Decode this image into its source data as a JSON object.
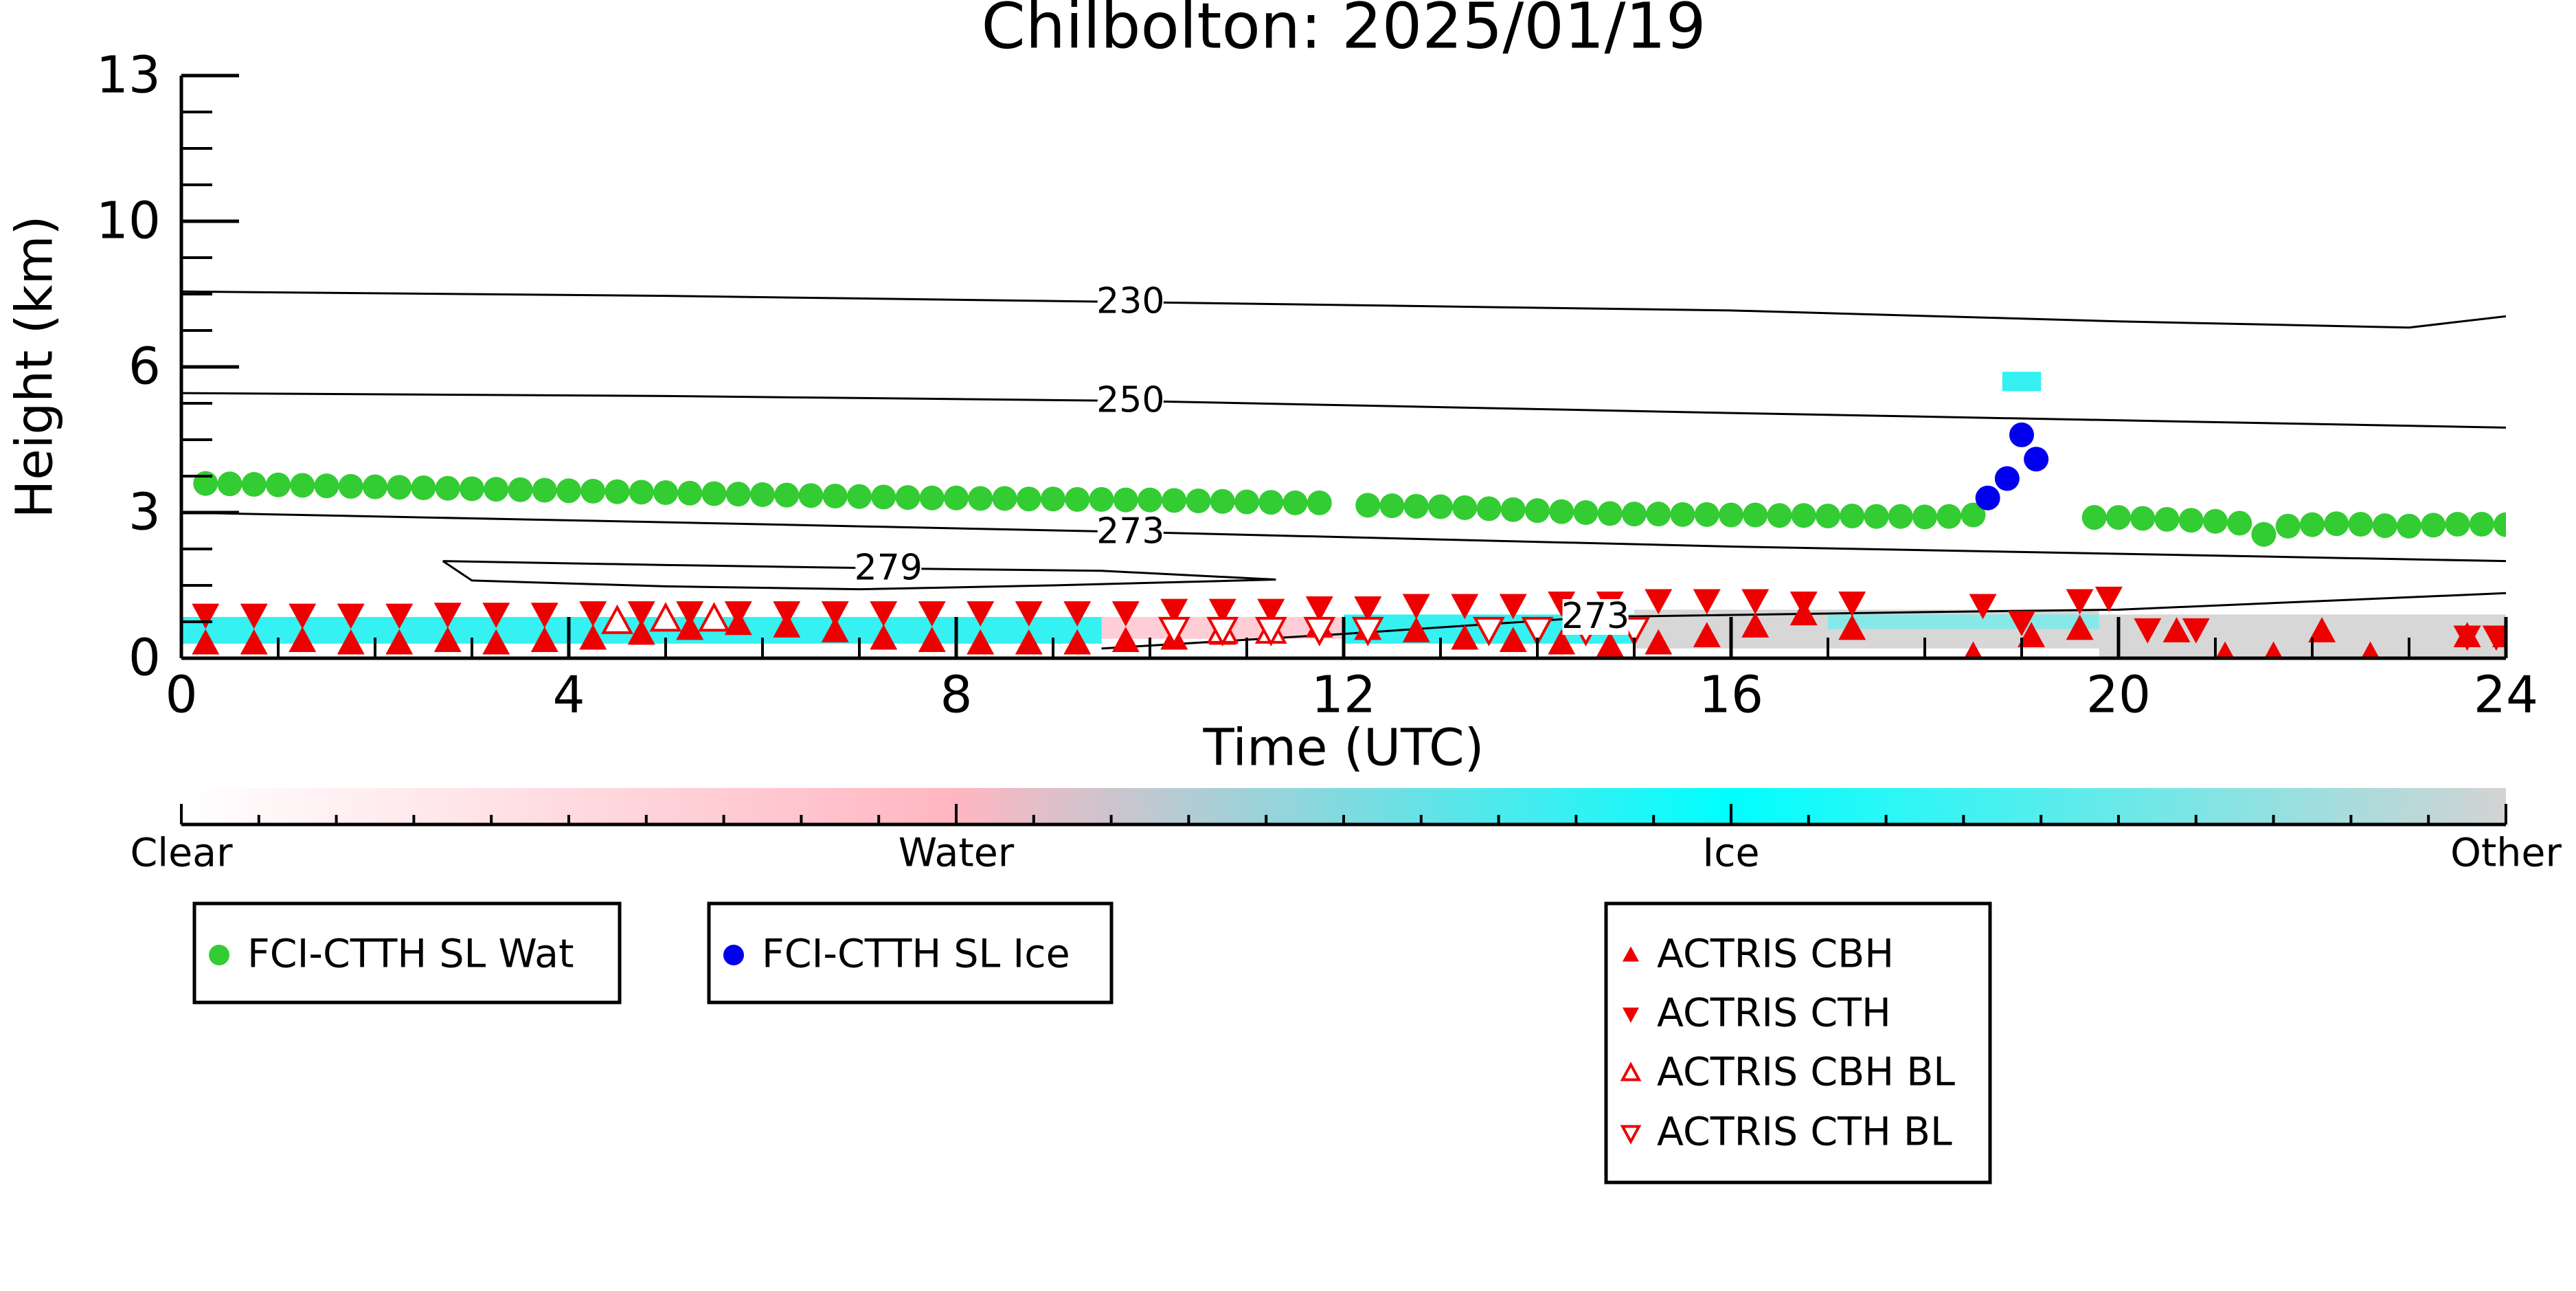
{
  "chart_data": {
    "type": "scatter",
    "title": "Chilbolton: 2025/01/19",
    "xlabel": "Time (UTC)",
    "ylabel": "Height (km)",
    "xlim": [
      0,
      24
    ],
    "xticks": [
      0,
      4,
      8,
      12,
      16,
      20,
      24
    ],
    "xticks_minor": [
      1,
      2,
      3,
      5,
      6,
      7,
      9,
      10,
      11,
      13,
      14,
      15,
      17,
      18,
      19,
      21,
      22,
      23
    ],
    "ylim": [
      0,
      13
    ],
    "yticks": [
      0,
      3,
      6,
      10,
      13
    ],
    "yticks_minor": [
      0.75,
      1.5,
      2.25,
      3.75,
      4.5,
      5.25,
      7,
      8,
      9,
      10.75,
      11.5,
      12.25
    ],
    "series": [
      {
        "name": "FCI-CTTH SL Wat",
        "color": "#33cc33",
        "marker": "circle",
        "x": [
          0.25,
          0.5,
          0.75,
          1,
          1.25,
          1.5,
          1.75,
          2,
          2.25,
          2.5,
          2.75,
          3,
          3.25,
          3.5,
          3.75,
          4,
          4.25,
          4.5,
          4.75,
          5,
          5.25,
          5.5,
          5.75,
          6,
          6.25,
          6.5,
          6.75,
          7,
          7.25,
          7.5,
          7.75,
          8,
          8.25,
          8.5,
          8.75,
          9,
          9.25,
          9.5,
          9.75,
          10,
          10.25,
          10.5,
          10.75,
          11,
          11.25,
          11.5,
          11.75,
          12.25,
          12.5,
          12.75,
          13,
          13.25,
          13.5,
          13.75,
          14,
          14.25,
          14.5,
          14.75,
          15,
          15.25,
          15.5,
          15.75,
          16,
          16.25,
          16.5,
          16.75,
          17,
          17.25,
          17.5,
          17.75,
          18,
          18.25,
          18.5,
          19.75,
          20,
          20.25,
          20.5,
          20.75,
          21,
          21.25,
          21.5,
          21.75,
          22,
          22.25,
          22.5,
          22.75,
          23,
          23.25,
          23.5,
          23.75,
          24
        ],
        "values": [
          3.6,
          3.59,
          3.58,
          3.57,
          3.56,
          3.55,
          3.54,
          3.53,
          3.52,
          3.51,
          3.5,
          3.49,
          3.48,
          3.47,
          3.46,
          3.45,
          3.44,
          3.43,
          3.42,
          3.41,
          3.4,
          3.39,
          3.38,
          3.37,
          3.36,
          3.35,
          3.34,
          3.33,
          3.32,
          3.31,
          3.3,
          3.3,
          3.29,
          3.29,
          3.28,
          3.28,
          3.27,
          3.27,
          3.26,
          3.26,
          3.25,
          3.24,
          3.23,
          3.22,
          3.21,
          3.2,
          3.2,
          3.15,
          3.14,
          3.13,
          3.12,
          3.1,
          3.08,
          3.06,
          3.04,
          3.02,
          3.0,
          2.98,
          2.97,
          2.97,
          2.96,
          2.96,
          2.95,
          2.95,
          2.94,
          2.94,
          2.93,
          2.93,
          2.92,
          2.92,
          2.91,
          2.92,
          2.95,
          2.9,
          2.9,
          2.88,
          2.86,
          2.84,
          2.82,
          2.78,
          2.55,
          2.72,
          2.75,
          2.77,
          2.76,
          2.73,
          2.72,
          2.74,
          2.76,
          2.76,
          2.75
        ]
      },
      {
        "name": "FCI-CTTH SL Ice",
        "color": "#0000ee",
        "marker": "circle",
        "x": [
          18.65,
          18.85,
          19.0,
          19.15
        ],
        "values": [
          3.3,
          3.7,
          4.6,
          4.1
        ]
      },
      {
        "name": "ACTRIS CBH",
        "color": "#ee0000",
        "marker": "triangle-up",
        "x": [
          0.25,
          0.75,
          1.25,
          1.75,
          2.25,
          2.75,
          3.25,
          3.75,
          4.25,
          4.75,
          5.25,
          5.75,
          6.25,
          6.75,
          7.25,
          7.75,
          8.25,
          8.75,
          9.25,
          9.75,
          10.25,
          10.75,
          11.25,
          11.75,
          12.25,
          12.75,
          13.25,
          13.75,
          14.25,
          14.75,
          15.25,
          15.75,
          16.25,
          16.75,
          17.25,
          18.5,
          19.1,
          19.6,
          20.6,
          21.1,
          21.6,
          22.1,
          22.6,
          23.6,
          24
        ],
        "values": [
          0.3,
          0.3,
          0.35,
          0.3,
          0.3,
          0.35,
          0.3,
          0.35,
          0.4,
          0.5,
          0.6,
          0.7,
          0.65,
          0.55,
          0.4,
          0.35,
          0.3,
          0.3,
          0.3,
          0.35,
          0.4,
          0.5,
          0.6,
          0.65,
          0.6,
          0.55,
          0.4,
          0.35,
          0.3,
          0.25,
          0.3,
          0.45,
          0.65,
          0.9,
          0.6,
          0.05,
          0.45,
          0.6,
          0.55,
          0.05,
          0.05,
          0.55,
          0.05,
          0.45,
          0.45
        ]
      },
      {
        "name": "ACTRIS CTH",
        "color": "#ee0000",
        "marker": "triangle-down",
        "x": [
          0.25,
          0.75,
          1.25,
          1.75,
          2.25,
          2.75,
          3.25,
          3.75,
          4.25,
          4.75,
          5.25,
          5.75,
          6.25,
          6.75,
          7.25,
          7.75,
          8.25,
          8.75,
          9.25,
          9.75,
          10.25,
          10.75,
          11.25,
          11.75,
          12.25,
          12.75,
          13.25,
          13.75,
          14.25,
          14.75,
          15.25,
          15.75,
          16.25,
          16.75,
          17.25,
          18.6,
          19.0,
          19.6,
          19.9,
          20.3,
          20.8,
          23.6,
          23.9
        ],
        "values": [
          0.9,
          0.9,
          0.9,
          0.9,
          0.9,
          0.92,
          0.92,
          0.92,
          0.95,
          0.95,
          0.95,
          0.95,
          0.95,
          0.95,
          0.95,
          0.95,
          0.95,
          0.95,
          0.95,
          0.95,
          1.0,
          1.0,
          1.0,
          1.05,
          1.05,
          1.1,
          1.1,
          1.1,
          1.15,
          1.15,
          1.2,
          1.2,
          1.2,
          1.15,
          1.15,
          1.1,
          0.75,
          1.2,
          1.25,
          0.6,
          0.6,
          0.45,
          0.45
        ]
      },
      {
        "name": "ACTRIS CBH BL",
        "color": "#ee0000",
        "marker": "triangle-up-open",
        "x": [
          4.5,
          5,
          5.5,
          10.75,
          11.25
        ],
        "values": [
          0.75,
          0.8,
          0.8,
          0.55,
          0.55
        ]
      },
      {
        "name": "ACTRIS CTH BL",
        "color": "#ee0000",
        "marker": "triangle-down-open",
        "x": [
          10.25,
          10.75,
          11.25,
          11.75,
          12.25,
          13.5,
          14,
          14.5,
          15
        ],
        "values": [
          0.6,
          0.6,
          0.6,
          0.6,
          0.6,
          0.6,
          0.6,
          0.6,
          0.6
        ]
      }
    ],
    "curtain": [
      {
        "x": [
          0,
          9.5
        ],
        "y": [
          0.3,
          0.85
        ],
        "color": "#1ff0f0"
      },
      {
        "x": [
          9.5,
          12
        ],
        "y": [
          0.4,
          0.85
        ],
        "color": "#ffc8d2"
      },
      {
        "x": [
          12,
          15
        ],
        "y": [
          0.3,
          0.9
        ],
        "color": "#1ff0f0"
      },
      {
        "x": [
          15,
          19.8
        ],
        "y": [
          0.2,
          1.0
        ],
        "color": "#d3d3d3"
      },
      {
        "x": [
          17,
          19.8
        ],
        "y": [
          0.6,
          0.9
        ],
        "color": "#7eeaea"
      },
      {
        "x": [
          19.8,
          24
        ],
        "y": [
          0.0,
          0.9
        ],
        "color": "#d3d3d3"
      },
      {
        "x": [
          18.8,
          19.2
        ],
        "y": [
          5.5,
          5.9
        ],
        "color": "#1ff0f0"
      }
    ],
    "contours": [
      {
        "level": 230,
        "x": [
          0,
          5,
          9.8,
          16,
          20,
          23,
          24
        ],
        "y": [
          8.07,
          7.95,
          7.78,
          7.55,
          7.25,
          7.08,
          7.39
        ]
      },
      {
        "level": 250,
        "x": [
          0,
          5,
          9.8,
          16,
          24
        ],
        "y": [
          5.46,
          5.4,
          5.3,
          5.05,
          4.75
        ]
      },
      {
        "level": 273,
        "x": [
          0,
          5,
          9.8,
          16,
          24
        ],
        "y": [
          3.0,
          2.8,
          2.6,
          2.3,
          2.0
        ]
      },
      {
        "level": 279,
        "x": [
          2.7,
          5,
          7.3,
          9.5,
          11.3,
          9,
          7,
          5,
          3,
          2.7
        ],
        "y": [
          2.0,
          1.92,
          1.85,
          1.8,
          1.62,
          1.5,
          1.42,
          1.48,
          1.6,
          2.0
        ]
      },
      {
        "level": 273,
        "x": [
          9.5,
          12,
          14.6,
          18,
          20,
          24
        ],
        "y": [
          0.2,
          0.5,
          0.85,
          0.95,
          1.0,
          1.34
        ]
      }
    ],
    "colorbar": {
      "labels": [
        "Clear",
        "Water",
        "Ice",
        "Other"
      ],
      "colors": [
        "#ffffff",
        "#ffb6c1",
        "#00ffff",
        "#d3d3d3"
      ]
    }
  }
}
